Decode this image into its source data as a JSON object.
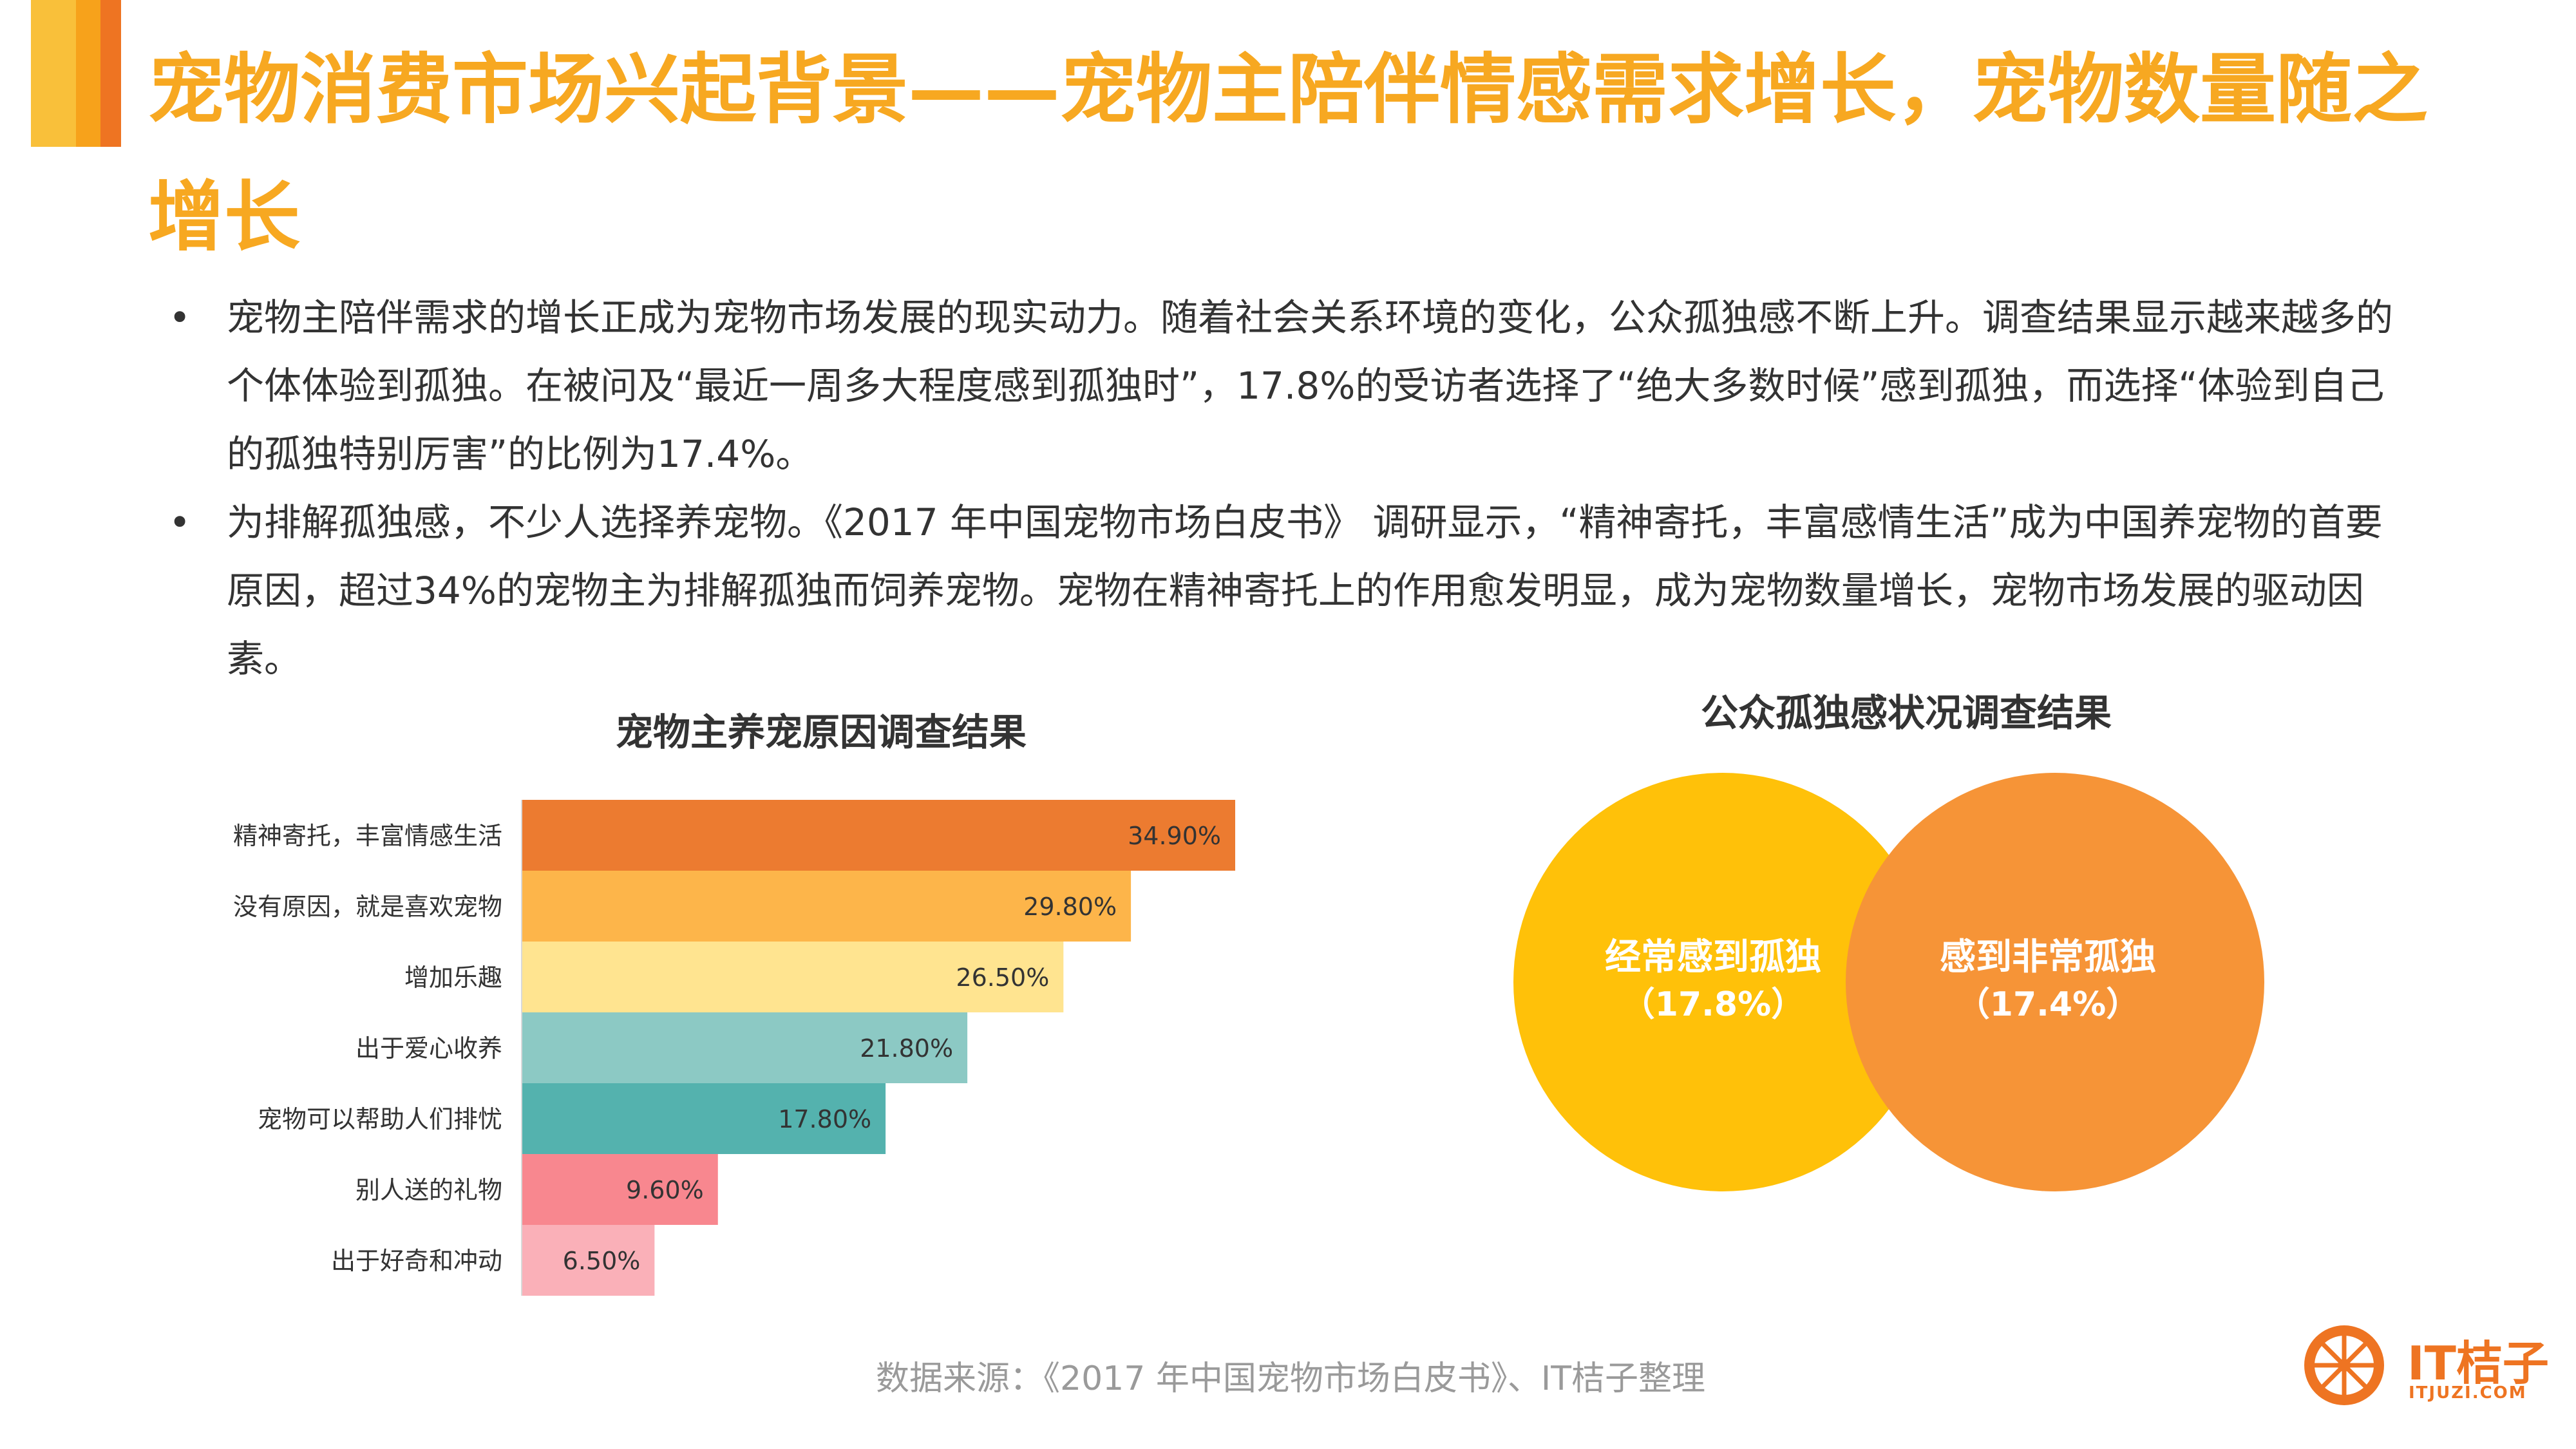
{
  "title": "宠物消费市场兴起背景——宠物主陪伴情感需求增长，宠物数量随之增长",
  "bullets": [
    "宠物主陪伴需求的增长正成为宠物市场发展的现实动力。随着社会关系环境的变化，公众孤独感不断上升。调查结果显示越来越多的个体体验到孤独。在被问及“最近一周多大程度感到孤独时”，17.8%的受访者选择了“绝大多数时候”感到孤独，而选择“体验到自己的孤独特别厉害”的比例为17.4%。",
    "为排解孤独感，不少人选择养宠物。《2017 年中国宠物市场白皮书》 调研显示，“精神寄托，丰富感情生活”成为中国养宠物的首要原因，超过34%的宠物主为排解孤独而饲养宠物。宠物在精神寄托上的作用愈发明显，成为宠物数量增长，宠物市场发展的驱动因素。"
  ],
  "bullet_symbol": "•",
  "source": "数据来源：《2017 年中国宠物市场白皮书》、IT桔子整理",
  "logo": {
    "text": "IT桔子",
    "sub": "ITJUZI.COM"
  },
  "colors": {
    "accent_orange": "#EE7422",
    "accent_gold": "#F7A821",
    "title": "#F7A821"
  },
  "chart_data": [
    {
      "type": "bar",
      "orientation": "horizontal",
      "title": "宠物主养宠原因调查结果",
      "categories": [
        "精神寄托，丰富情感生活",
        "没有原因，就是喜欢宠物",
        "增加乐趣",
        "出于爱心收养",
        "宠物可以帮助人们排忧",
        "别人送的礼物",
        "出于好奇和冲动"
      ],
      "values": [
        34.9,
        29.8,
        26.5,
        21.8,
        17.8,
        9.6,
        6.5
      ],
      "labels": [
        "34.90%",
        "29.80%",
        "26.50%",
        "21.80%",
        "17.80%",
        "9.60%",
        "6.50%"
      ],
      "colors": [
        "#EC7B30",
        "#FDB54A",
        "#FFE490",
        "#8CC9C4",
        "#54B2AE",
        "#F8878F",
        "#FAB0B8"
      ],
      "xlim": [
        0,
        34.9
      ],
      "unit": "%"
    },
    {
      "type": "venn",
      "title": "公众孤独感状况调查结果",
      "sets": [
        {
          "label": "经常感到孤独",
          "value_label": "（17.8%）",
          "value": 17.8,
          "color": "#FFC109"
        },
        {
          "label": "感到非常孤独",
          "value_label": "（17.4%）",
          "value": 17.4,
          "color": "#F69437"
        }
      ],
      "unit": "%"
    }
  ]
}
